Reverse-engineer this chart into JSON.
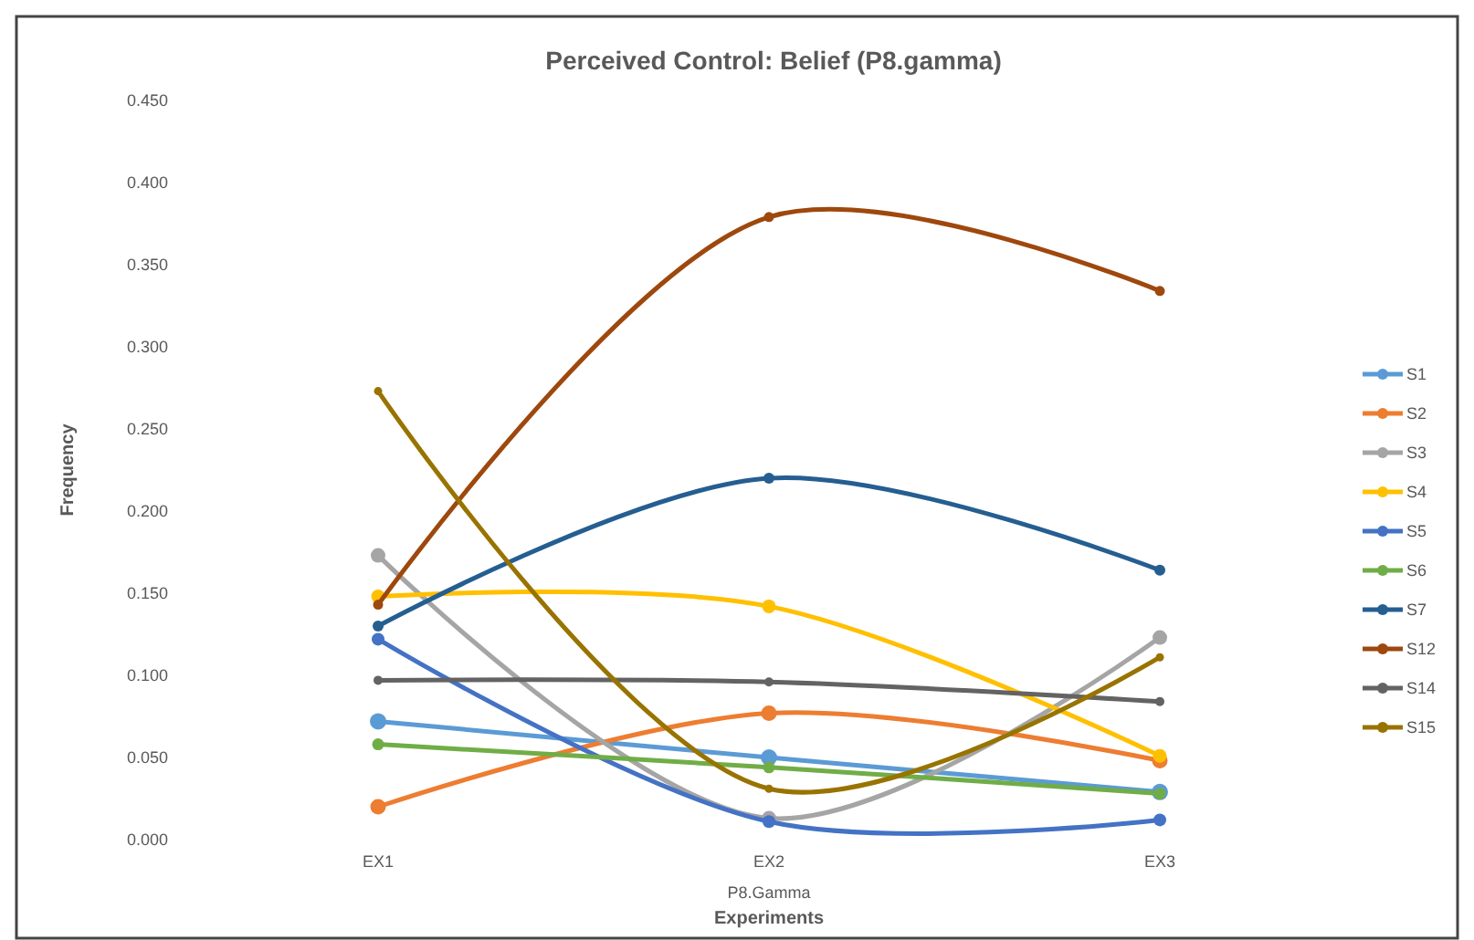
{
  "chart_data": {
    "type": "line",
    "title": "Perceived Control: Belief (P8.gamma)",
    "xlabel": "Experiments",
    "ylabel": "Frequency",
    "annotations": [
      "P8.Gamma"
    ],
    "categories": [
      "EX1",
      "EX2",
      "EX3"
    ],
    "ylim": [
      0,
      0.45
    ],
    "yticks": [
      {
        "value": 0,
        "label": "0.000"
      },
      {
        "value": 0.05,
        "label": "0.050"
      },
      {
        "value": 0.1,
        "label": "0.100"
      },
      {
        "value": 0.15,
        "label": "0.150"
      },
      {
        "value": 0.2,
        "label": "0.200"
      },
      {
        "value": 0.25,
        "label": "0.250"
      },
      {
        "value": 0.3,
        "label": "0.300"
      },
      {
        "value": 0.35,
        "label": "0.350"
      },
      {
        "value": 0.4,
        "label": "0.400"
      },
      {
        "value": 0.45,
        "label": "0.450"
      }
    ],
    "grid": false,
    "legend": "right",
    "marker": "circle",
    "line_style": "solid",
    "series": [
      {
        "name": "S1",
        "color": "#5b9bd5",
        "values": [
          0.072,
          0.05,
          0.029
        ]
      },
      {
        "name": "S2",
        "color": "#ed7d31",
        "values": [
          0.02,
          0.077,
          0.048
        ]
      },
      {
        "name": "S3",
        "color": "#a5a5a5",
        "values": [
          0.173,
          0.013,
          0.123
        ]
      },
      {
        "name": "S4",
        "color": "#ffc000",
        "values": [
          0.148,
          0.142,
          0.051
        ]
      },
      {
        "name": "S5",
        "color": "#4472c4",
        "values": [
          0.122,
          0.011,
          0.012
        ]
      },
      {
        "name": "S6",
        "color": "#70ad47",
        "values": [
          0.058,
          0.044,
          0.028
        ]
      },
      {
        "name": "S7",
        "color": "#255e91",
        "values": [
          0.13,
          0.22,
          0.164
        ]
      },
      {
        "name": "S12",
        "color": "#9e480e",
        "values": [
          0.143,
          0.379,
          0.334
        ]
      },
      {
        "name": "S14",
        "color": "#636363",
        "values": [
          0.097,
          0.096,
          0.084
        ]
      },
      {
        "name": "S15",
        "color": "#997300",
        "values": [
          0.273,
          0.031,
          0.111
        ]
      }
    ]
  }
}
